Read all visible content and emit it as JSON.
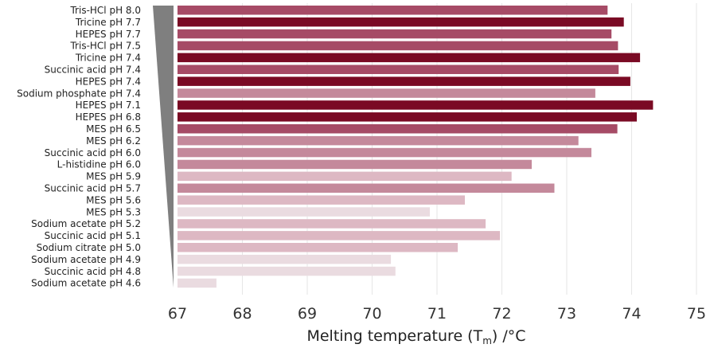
{
  "chart_data": {
    "type": "bar",
    "orientation": "horizontal",
    "title": "",
    "xlabel_main": "Melting temperature (T",
    "xlabel_sub": "m",
    "xlabel_tail": ") /°C",
    "xlim": [
      67,
      75
    ],
    "xticks": [
      "67",
      "68",
      "69",
      "70",
      "71",
      "72",
      "73",
      "74",
      "75"
    ],
    "grid": "vertical",
    "colors": {
      "c1": "#7a0a24",
      "c2": "#a64b66",
      "c3": "#c4899b",
      "c4": "#ddb8c3",
      "c5": "#eadbe0",
      "wedge": "#7f7f7f",
      "grid": "#e6e6e6"
    },
    "items": [
      {
        "buffer": "Tris-HCl",
        "ph": "pH 8.0",
        "value": 73.63,
        "shade": "c2"
      },
      {
        "buffer": "Tricine",
        "ph": "pH 7.7",
        "value": 73.88,
        "shade": "c1"
      },
      {
        "buffer": "HEPES",
        "ph": "pH 7.7",
        "value": 73.69,
        "shade": "c2"
      },
      {
        "buffer": "Tris-HCl",
        "ph": "pH 7.5",
        "value": 73.79,
        "shade": "c2"
      },
      {
        "buffer": "Tricine",
        "ph": "pH 7.4",
        "value": 74.13,
        "shade": "c1"
      },
      {
        "buffer": "Succinic acid",
        "ph": "pH 7.4",
        "value": 73.8,
        "shade": "c2"
      },
      {
        "buffer": "HEPES",
        "ph": "pH 7.4",
        "value": 73.98,
        "shade": "c1"
      },
      {
        "buffer": "Sodium phosphate",
        "ph": "pH 7.4",
        "value": 73.44,
        "shade": "c3"
      },
      {
        "buffer": "HEPES",
        "ph": "pH 7.1",
        "value": 74.33,
        "shade": "c1"
      },
      {
        "buffer": "HEPES",
        "ph": "pH 6.8",
        "value": 74.08,
        "shade": "c1"
      },
      {
        "buffer": "MES",
        "ph": "pH 6.5",
        "value": 73.78,
        "shade": "c2"
      },
      {
        "buffer": "MES",
        "ph": "pH 6.2",
        "value": 73.18,
        "shade": "c3"
      },
      {
        "buffer": "Succinic acid",
        "ph": "pH 6.0",
        "value": 73.38,
        "shade": "c3"
      },
      {
        "buffer": "L-histidine",
        "ph": "pH 6.0",
        "value": 72.46,
        "shade": "c3"
      },
      {
        "buffer": "MES",
        "ph": "pH 5.9",
        "value": 72.15,
        "shade": "c4"
      },
      {
        "buffer": "Succinic acid",
        "ph": "pH 5.7",
        "value": 72.81,
        "shade": "c3"
      },
      {
        "buffer": "MES",
        "ph": "pH 5.6",
        "value": 71.43,
        "shade": "c4"
      },
      {
        "buffer": "MES",
        "ph": "pH 5.3",
        "value": 70.89,
        "shade": "c5"
      },
      {
        "buffer": "Sodium acetate",
        "ph": "pH 5.2",
        "value": 71.75,
        "shade": "c4"
      },
      {
        "buffer": "Succinic acid",
        "ph": "pH 5.1",
        "value": 71.97,
        "shade": "c4"
      },
      {
        "buffer": "Sodium citrate",
        "ph": "pH 5.0",
        "value": 71.32,
        "shade": "c4"
      },
      {
        "buffer": "Sodium acetate",
        "ph": "pH 4.9",
        "value": 70.29,
        "shade": "c5"
      },
      {
        "buffer": "Succinic acid",
        "ph": "pH 4.8",
        "value": 70.36,
        "shade": "c5"
      },
      {
        "buffer": "Sodium acetate",
        "ph": "pH 4.6",
        "value": 67.6,
        "shade": "c5"
      }
    ]
  }
}
